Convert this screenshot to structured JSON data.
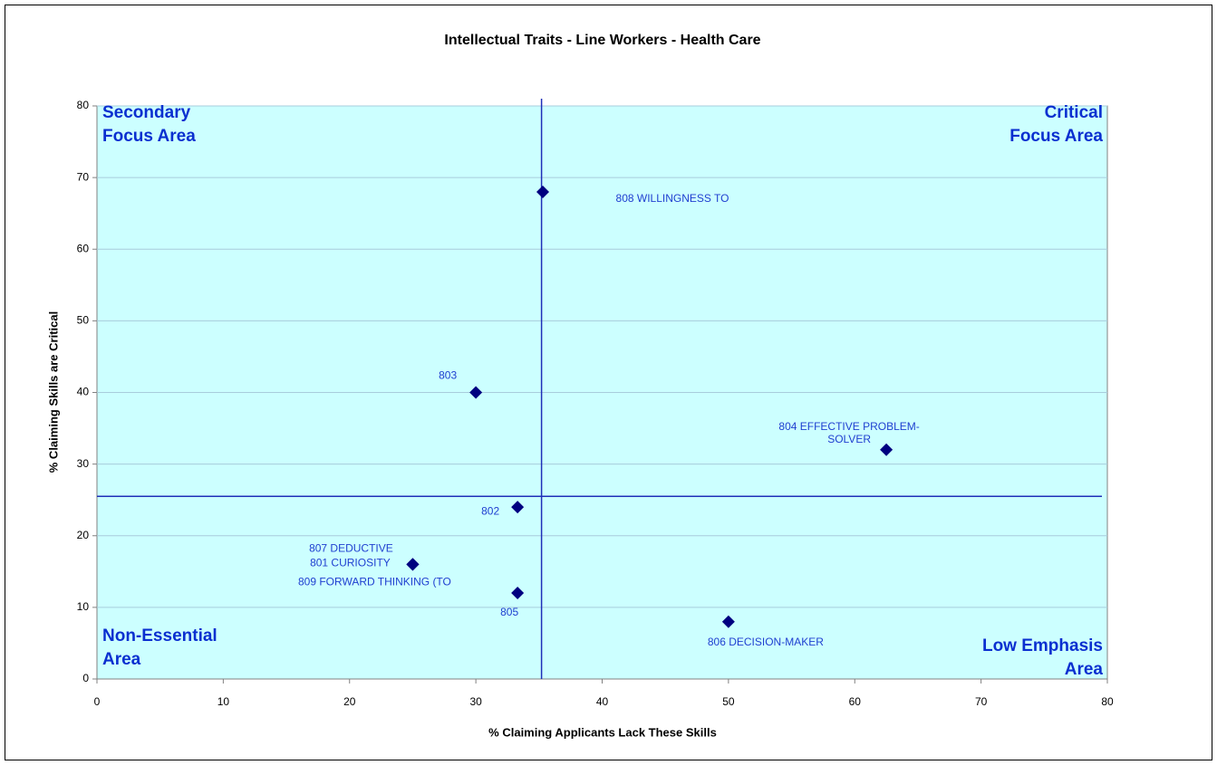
{
  "chart_data": {
    "type": "scatter",
    "title": "Intellectual Traits - Line Workers - Health Care",
    "xlabel": "% Claiming Applicants Lack These Skills",
    "ylabel": "% Claiming Skills are Critical",
    "xlim": [
      0,
      80
    ],
    "ylim": [
      0,
      80
    ],
    "xticks": [
      0,
      10,
      20,
      30,
      40,
      50,
      60,
      70,
      80
    ],
    "yticks": [
      0,
      10,
      20,
      30,
      40,
      50,
      60,
      70,
      80
    ],
    "grid": true,
    "background": "#ccffff",
    "x_reference_line": 35.2,
    "y_reference_line": 25.5,
    "reference_line_color": "#1f2fb8",
    "label_color": "#1f3fd0",
    "series": [
      {
        "color": "#000080",
        "x": [
          35.3,
          30,
          62.5,
          33.3,
          25,
          25,
          25,
          33.3,
          50
        ],
        "values": [
          68,
          40,
          32,
          24,
          16,
          16,
          16,
          12,
          8
        ],
        "labels": [
          [
            "808 WILLINGNESS TO"
          ],
          [
            "803"
          ],
          [
            "804 EFFECTIVE PROBLEM-",
            "SOLVER"
          ],
          [
            "802"
          ],
          [
            "807 DEDUCTIVE"
          ],
          [
            "801 CURIOSITY"
          ],
          [
            "809 FORWARD THINKING (TO"
          ],
          [
            "805"
          ],
          [
            "806 DECISION-MAKER"
          ]
        ]
      }
    ],
    "quadrant_labels": {
      "top_left": [
        "Secondary",
        "Focus Area"
      ],
      "top_right": [
        "Critical",
        "Focus Area"
      ],
      "bottom_left": [
        "Non-Essential",
        "Area"
      ],
      "bottom_right": [
        "Low Emphasis",
        "Area"
      ]
    }
  }
}
